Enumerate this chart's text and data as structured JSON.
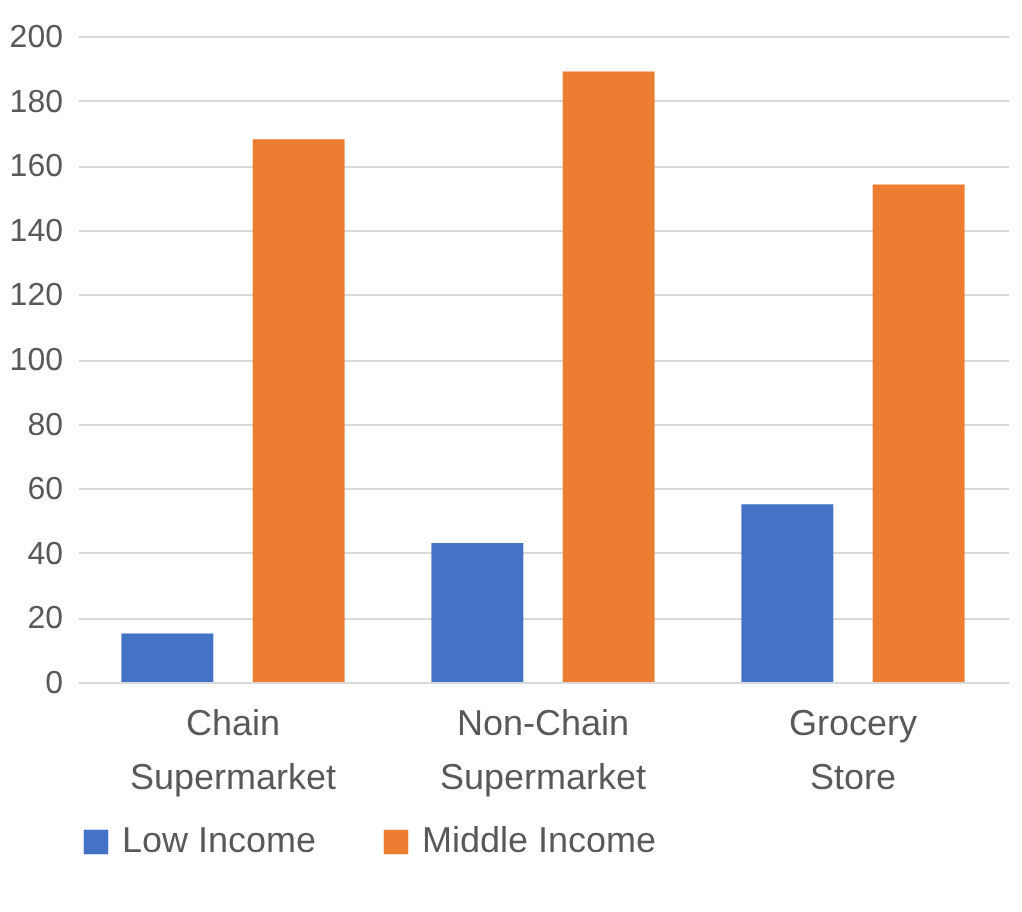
{
  "chart_data": {
    "type": "bar",
    "categories": [
      "Chain Supermarket",
      "Non-Chain Supermarket",
      "Grocery Store"
    ],
    "series": [
      {
        "name": "Low Income",
        "color": "#4472c4",
        "values": [
          15,
          43,
          55
        ]
      },
      {
        "name": "Middle Income",
        "color": "#ed7d31",
        "values": [
          168,
          189,
          154
        ]
      }
    ],
    "ylim": [
      0,
      200
    ],
    "yticks": [
      0,
      20,
      40,
      60,
      80,
      100,
      120,
      140,
      160,
      180,
      200
    ],
    "grid": "y",
    "legend": "bottom"
  }
}
